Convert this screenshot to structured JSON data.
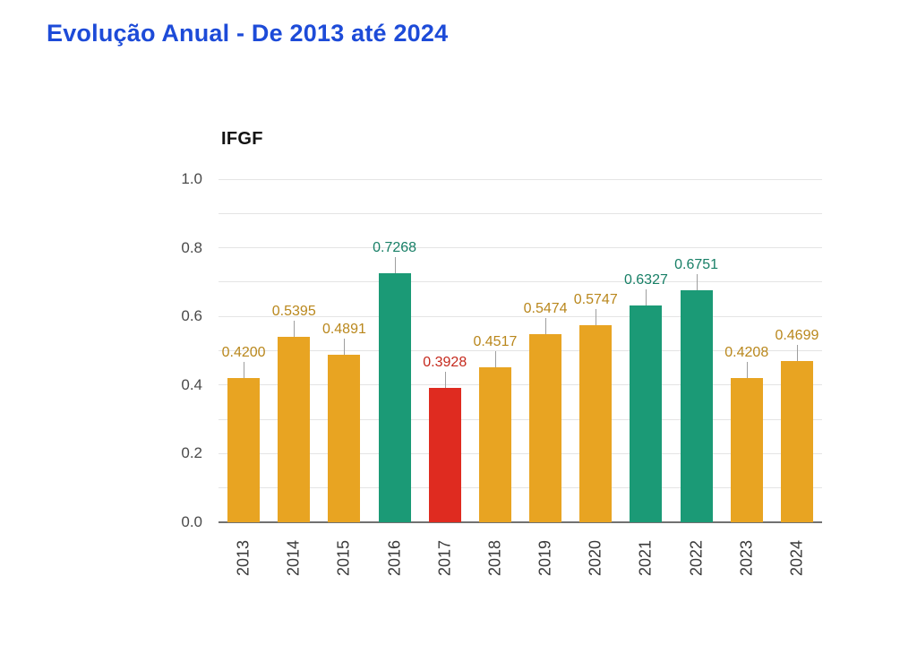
{
  "header": {
    "title": "Evolução Anual - De 2013 até 2024",
    "title_color": "#1d4bd8"
  },
  "chart_data": {
    "type": "bar",
    "title": "IFGF",
    "xlabel": "",
    "ylabel": "IFGF",
    "categories": [
      "2013",
      "2014",
      "2015",
      "2016",
      "2017",
      "2018",
      "2019",
      "2020",
      "2021",
      "2022",
      "2023",
      "2024"
    ],
    "values": [
      0.42,
      0.5395,
      0.4891,
      0.7268,
      0.3928,
      0.4517,
      0.5474,
      0.5747,
      0.6327,
      0.6751,
      0.4208,
      0.4699
    ],
    "value_labels": [
      "0.4200",
      "0.5395",
      "0.4891",
      "0.7268",
      "0.3928",
      "0.4517",
      "0.5474",
      "0.5747",
      "0.6327",
      "0.6751",
      "0.4208",
      "0.4699"
    ],
    "bar_colors": [
      "#e8a422",
      "#e8a422",
      "#e8a422",
      "#1b9a76",
      "#df2b20",
      "#e8a422",
      "#e8a422",
      "#e8a422",
      "#1b9a76",
      "#1b9a76",
      "#e8a422",
      "#e8a422"
    ],
    "value_label_colors": [
      "#b9871c",
      "#b9871c",
      "#b9871c",
      "#177f66",
      "#c5291d",
      "#b9871c",
      "#b9871c",
      "#b9871c",
      "#177f66",
      "#177f66",
      "#b9871c",
      "#b9871c"
    ],
    "ylim": [
      0,
      1
    ],
    "grid_step": 0.1,
    "y_ticks": [
      {
        "label": "0.0",
        "value": 0.0
      },
      {
        "label": "0.2",
        "value": 0.2
      },
      {
        "label": "0.4",
        "value": 0.4
      },
      {
        "label": "0.6",
        "value": 0.6
      },
      {
        "label": "0.8",
        "value": 0.8
      },
      {
        "label": "1.0",
        "value": 1.0
      }
    ],
    "legend": "none",
    "grid_on": true,
    "colors": {
      "gridline": "#e4e4e4",
      "baseline": "#707070",
      "stem": "#9e9e9e",
      "y_tick_text": "#4a4a4a",
      "x_tick_text": "#3a3a3a"
    }
  }
}
